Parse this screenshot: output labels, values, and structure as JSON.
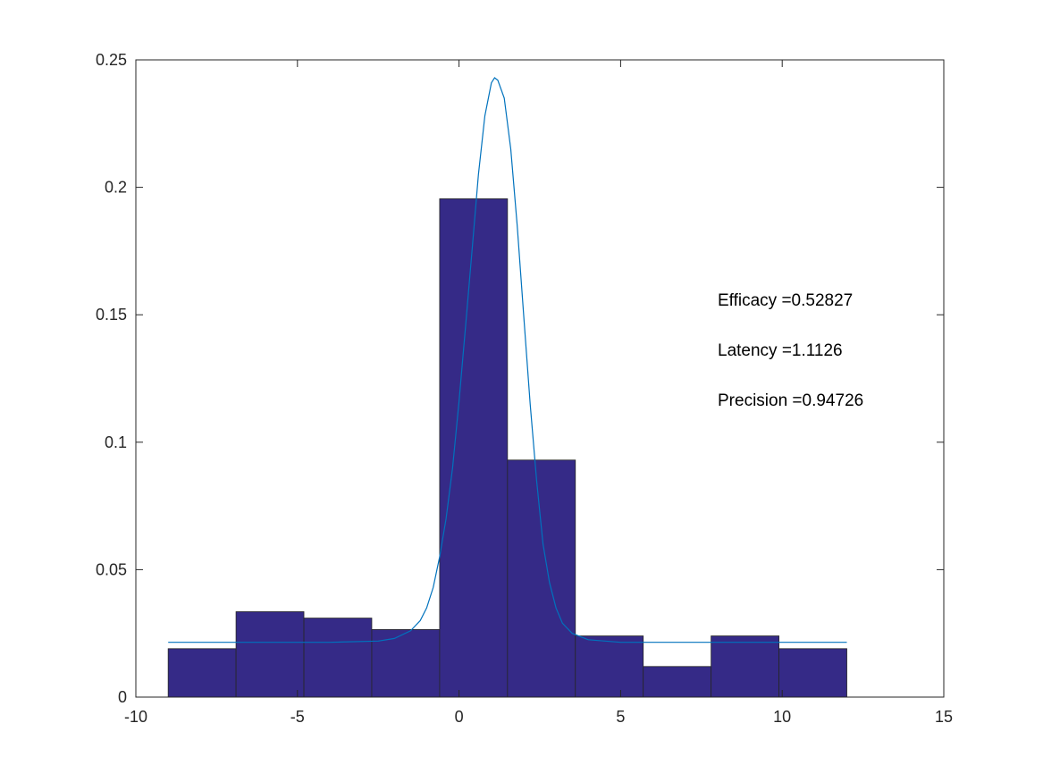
{
  "chart_data": {
    "type": "bar",
    "title": "",
    "xlabel": "",
    "ylabel": "",
    "xlim": [
      -10,
      15
    ],
    "ylim": [
      0,
      0.25
    ],
    "xticks": [
      -10,
      -5,
      0,
      5,
      10,
      15
    ],
    "xtick_labels": [
      "-10",
      "-5",
      "0",
      "5",
      "10",
      "15"
    ],
    "yticks": [
      0,
      0.05,
      0.1,
      0.15,
      0.2,
      0.25
    ],
    "ytick_labels": [
      "0",
      "0.05",
      "0.1",
      "0.15",
      "0.2",
      "0.25"
    ],
    "grid": false,
    "histogram": {
      "bin_edges": [
        -9.0,
        -6.9,
        -4.8,
        -2.7,
        -0.6,
        1.5,
        3.6,
        5.7,
        7.8,
        9.9,
        12.0
      ],
      "values": [
        0.019,
        0.0335,
        0.031,
        0.0265,
        0.1955,
        0.093,
        0.024,
        0.012,
        0.024,
        0.019
      ],
      "color": "#352a87",
      "edge_color": "#262626"
    },
    "fit_curve": {
      "x": [
        -9.0,
        -4.0,
        -2.5,
        -2.0,
        -1.5,
        -1.2,
        -1.0,
        -0.8,
        -0.6,
        -0.4,
        -0.2,
        0.0,
        0.2,
        0.4,
        0.6,
        0.8,
        1.0,
        1.1,
        1.2,
        1.4,
        1.6,
        1.8,
        2.0,
        2.2,
        2.4,
        2.6,
        2.8,
        3.0,
        3.2,
        3.5,
        4.0,
        5.0,
        12.0
      ],
      "y": [
        0.0215,
        0.0215,
        0.022,
        0.023,
        0.026,
        0.03,
        0.035,
        0.043,
        0.055,
        0.07,
        0.09,
        0.116,
        0.145,
        0.175,
        0.205,
        0.228,
        0.241,
        0.243,
        0.242,
        0.235,
        0.215,
        0.185,
        0.15,
        0.115,
        0.085,
        0.06,
        0.045,
        0.035,
        0.029,
        0.025,
        0.0225,
        0.0215,
        0.0215
      ],
      "color": "#0072bd"
    },
    "annotations": [
      {
        "text": "Efficacy =0.52827"
      },
      {
        "text": "Latency =1.1126"
      },
      {
        "text": "Precision =0.94726"
      }
    ]
  }
}
